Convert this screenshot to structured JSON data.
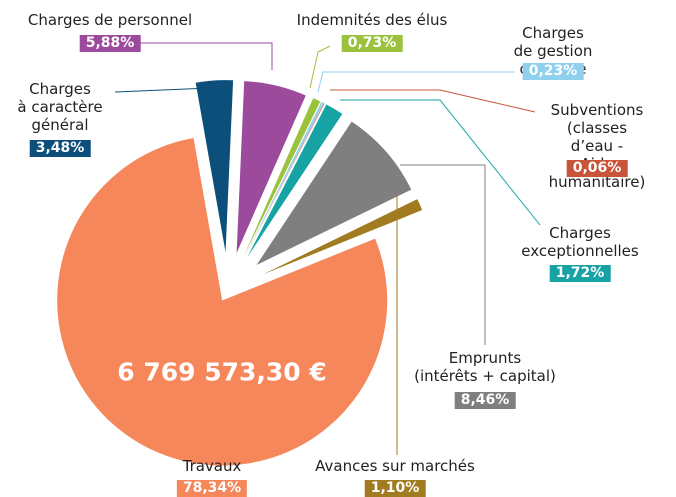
{
  "chart_data": {
    "type": "pie",
    "categories": [
      "Charges\nà caractère\ngénéral",
      "Charges de personnel",
      "Indemnités des élus",
      "Charges\nde gestion courante",
      "Subventions\n(classes d’eau -\nAide humanitaire)",
      "Charges\nexceptionnelles",
      "Emprunts\n(intérêts + capital)",
      "Avances sur marchés",
      "Travaux"
    ],
    "values": [
      3.48,
      5.88,
      0.73,
      0.23,
      0.06,
      1.72,
      8.46,
      1.1,
      78.34
    ],
    "value_labels": [
      "3,48%",
      "5,88%",
      "0,73%",
      "0,23%",
      "0,06%",
      "1,72%",
      "8,46%",
      "1,10%",
      "78,34%"
    ],
    "colors": [
      "#0b4f7a",
      "#9b4a9c",
      "#9ac23c",
      "#8fd0ee",
      "#c8553a",
      "#17a2a4",
      "#7f7f7f",
      "#a07b1f",
      "#f5875a"
    ],
    "annotation": "6 769 573,30 €"
  }
}
